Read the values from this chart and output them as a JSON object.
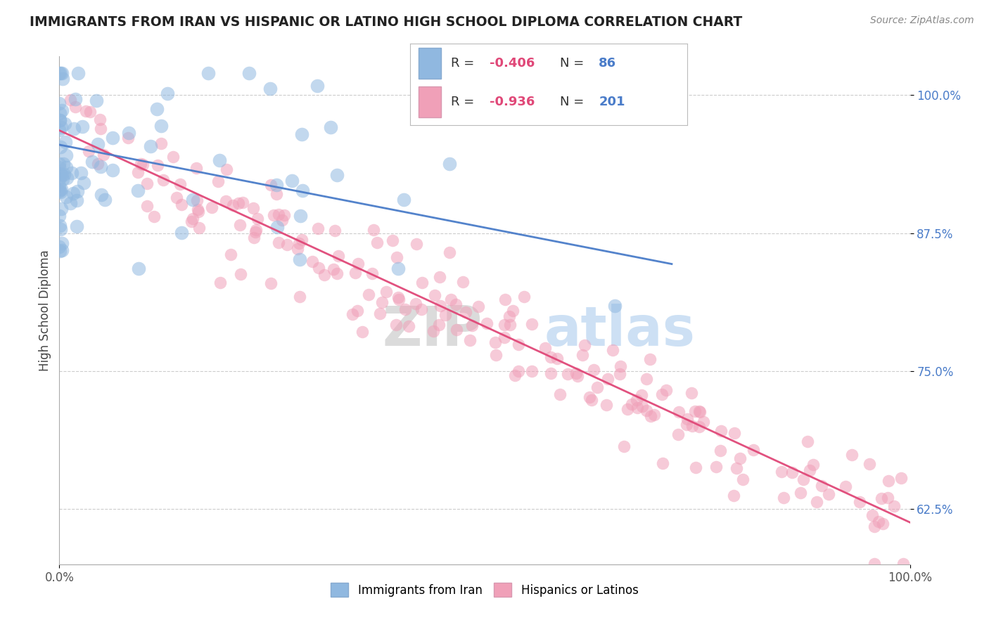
{
  "title": "IMMIGRANTS FROM IRAN VS HISPANIC OR LATINO HIGH SCHOOL DIPLOMA CORRELATION CHART",
  "source": "Source: ZipAtlas.com",
  "ylabel": "High School Diploma",
  "ytick_labels": [
    "62.5%",
    "75.0%",
    "87.5%",
    "100.0%"
  ],
  "ytick_values": [
    0.625,
    0.75,
    0.875,
    1.0
  ],
  "xlim": [
    0.0,
    1.0
  ],
  "ylim": [
    0.575,
    1.035
  ],
  "legend_blue_R": "-0.406",
  "legend_blue_N": "86",
  "legend_pink_R": "-0.936",
  "legend_pink_N": "201",
  "legend_label1": "Immigrants from Iran",
  "legend_label2": "Hispanics or Latinos",
  "blue_color": "#90b8e0",
  "blue_line_color": "#4a7cc9",
  "pink_color": "#f0a0b8",
  "pink_line_color": "#e04878",
  "watermark_zip": "ZIP",
  "watermark_atlas": "atlas",
  "background_color": "#ffffff",
  "grid_color": "#cccccc",
  "title_color": "#222222",
  "source_color": "#888888",
  "ylabel_color": "#444444",
  "tick_color": "#4a7cc9",
  "legend_R_color": "#e04878",
  "legend_N_color": "#4a7cc9",
  "legend_text_color": "#333333"
}
